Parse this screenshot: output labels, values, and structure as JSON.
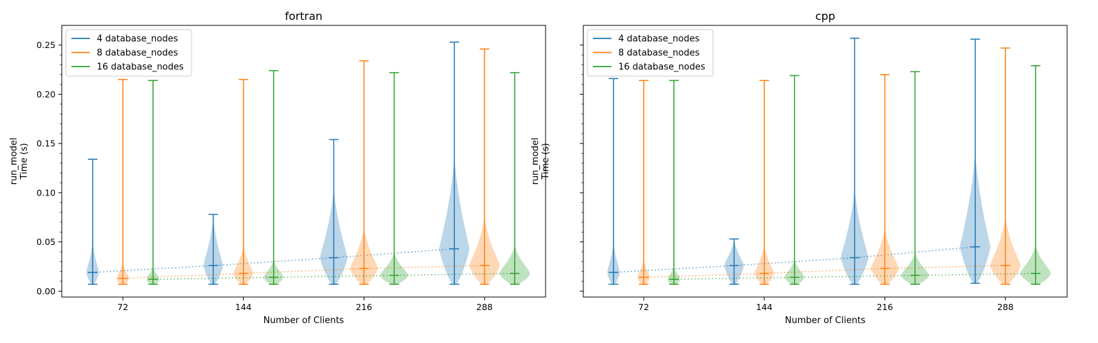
{
  "chart_data": [
    {
      "type": "violin",
      "title": "fortran",
      "xlabel": "Number of Clients",
      "ylabel_lines": [
        "run_model",
        "Time (s)"
      ],
      "x_ticks": [
        72,
        144,
        216,
        288
      ],
      "ylim": [
        -0.006,
        0.27
      ],
      "y_ticks": [
        0.0,
        0.05,
        0.1,
        0.15,
        0.2,
        0.25
      ],
      "y_tick_labels": [
        "0.00",
        "0.05",
        "0.10",
        "0.15",
        "0.20",
        "0.25"
      ],
      "legend_position": "top-left",
      "series": [
        {
          "name": "4 database_nodes",
          "color": "#1f77b4",
          "x": [
            72,
            144,
            216,
            288
          ],
          "min": [
            0.007,
            0.007,
            0.007,
            0.007
          ],
          "max": [
            0.134,
            0.078,
            0.154,
            0.253
          ],
          "median": [
            0.019,
            0.026,
            0.034,
            0.043
          ]
        },
        {
          "name": "8 database_nodes",
          "color": "#ff7f0e",
          "x": [
            72,
            144,
            216,
            288
          ],
          "min": [
            0.007,
            0.007,
            0.007,
            0.007
          ],
          "max": [
            0.215,
            0.215,
            0.234,
            0.246
          ],
          "median": [
            0.013,
            0.018,
            0.023,
            0.026
          ]
        },
        {
          "name": "16 database_nodes",
          "color": "#2ca02c",
          "x": [
            72,
            144,
            216,
            288
          ],
          "min": [
            0.007,
            0.007,
            0.007,
            0.007
          ],
          "max": [
            0.214,
            0.224,
            0.222,
            0.222
          ],
          "median": [
            0.012,
            0.014,
            0.016,
            0.018
          ]
        }
      ]
    },
    {
      "type": "violin",
      "title": "cpp",
      "xlabel": "Number of Clients",
      "ylabel_lines": [
        "run_model",
        "Time (s)"
      ],
      "x_ticks": [
        72,
        144,
        216,
        288
      ],
      "ylim": [
        -0.006,
        0.27
      ],
      "legend_position": "top-left",
      "series": [
        {
          "name": "4 database_nodes",
          "color": "#1f77b4",
          "x": [
            72,
            144,
            216,
            288
          ],
          "min": [
            0.007,
            0.007,
            0.007,
            0.008
          ],
          "max": [
            0.216,
            0.053,
            0.257,
            0.256
          ],
          "median": [
            0.019,
            0.026,
            0.034,
            0.045
          ]
        },
        {
          "name": "8 database_nodes",
          "color": "#ff7f0e",
          "x": [
            72,
            144,
            216,
            288
          ],
          "min": [
            0.007,
            0.007,
            0.007,
            0.007
          ],
          "max": [
            0.214,
            0.214,
            0.22,
            0.247
          ],
          "median": [
            0.014,
            0.018,
            0.023,
            0.026
          ]
        },
        {
          "name": "16 database_nodes",
          "color": "#2ca02c",
          "x": [
            72,
            144,
            216,
            288
          ],
          "min": [
            0.007,
            0.007,
            0.007,
            0.007
          ],
          "max": [
            0.214,
            0.219,
            0.223,
            0.229
          ],
          "median": [
            0.012,
            0.014,
            0.016,
            0.018
          ]
        }
      ]
    }
  ]
}
